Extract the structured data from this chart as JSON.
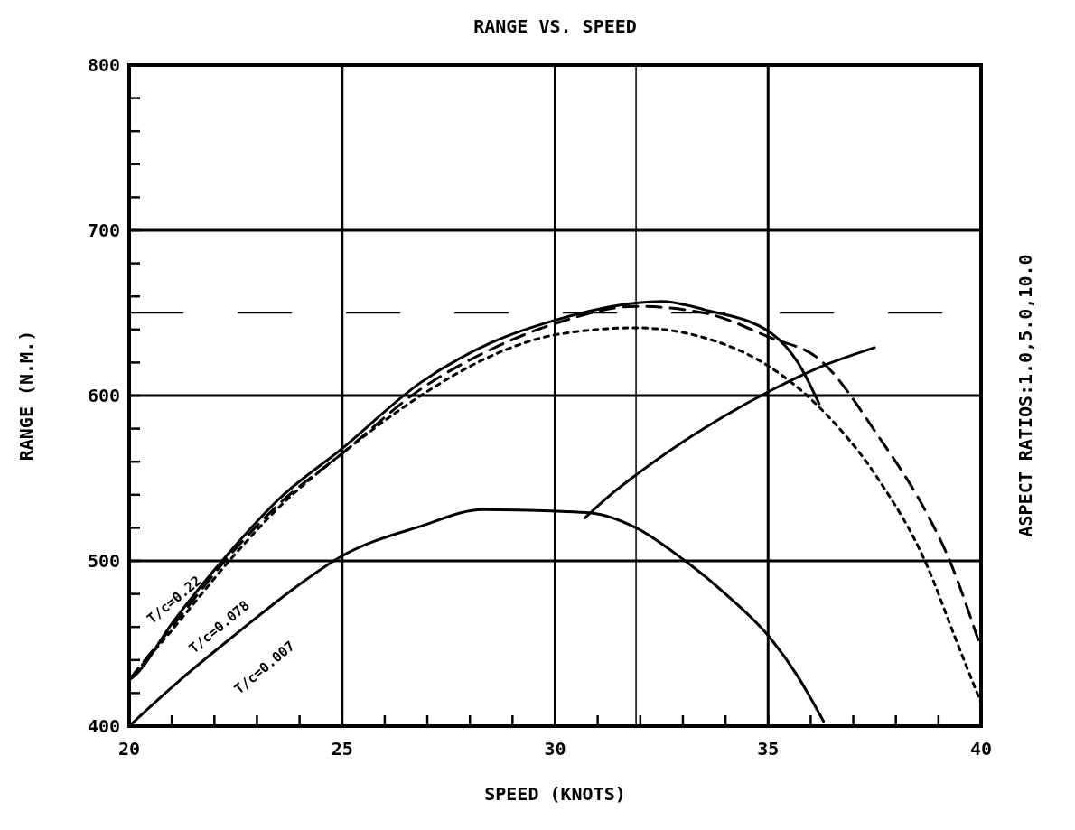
{
  "chart_data": {
    "type": "line",
    "title": "RANGE VS. SPEED",
    "xlabel": "SPEED (KNOTS)",
    "ylabel": "RANGE (N.M.)",
    "y2label": "ASPECT RATIOS:1.0,5.0,10.0",
    "xlim": [
      20,
      40
    ],
    "ylim": [
      400,
      800
    ],
    "xticks": [
      20,
      {
        "value": 21,
        "label": null
      },
      {
        "value": 22,
        "label": null
      },
      {
        "value": 23,
        "label": null
      },
      {
        "value": 24,
        "label": null
      },
      25,
      {
        "value": 26,
        "label": null
      },
      {
        "value": 27,
        "label": null
      },
      {
        "value": 28,
        "label": null
      },
      {
        "value": 29,
        "label": null
      },
      30,
      {
        "value": 31,
        "label": null
      },
      {
        "value": 32,
        "label": null
      },
      {
        "value": 33,
        "label": null
      },
      {
        "value": 34,
        "label": null
      },
      35,
      {
        "value": 36,
        "label": null
      },
      {
        "value": 37,
        "label": null
      },
      {
        "value": 38,
        "label": null
      },
      {
        "value": 39,
        "label": null
      },
      40
    ],
    "yticks": [
      400,
      {
        "value": 420,
        "label": null
      },
      {
        "value": 440,
        "label": null
      },
      {
        "value": 460,
        "label": null
      },
      {
        "value": 480,
        "label": null
      },
      500,
      {
        "value": 520,
        "label": null
      },
      {
        "value": 540,
        "label": null
      },
      {
        "value": 560,
        "label": null
      },
      {
        "value": 580,
        "label": null
      },
      600,
      {
        "value": 620,
        "label": null
      },
      {
        "value": 640,
        "label": null
      },
      {
        "value": 660,
        "label": null
      },
      {
        "value": 680,
        "label": null
      },
      700,
      {
        "value": 720,
        "label": null
      },
      {
        "value": 740,
        "label": null
      },
      {
        "value": 760,
        "label": null
      },
      {
        "value": 780,
        "label": null
      },
      800
    ],
    "grid": true,
    "marker": "none",
    "series": [
      {
        "color": "#000000",
        "line_style": "solid",
        "x": [
          20,
          20.15,
          21,
          22.35,
          23.5,
          25,
          26.85,
          28.5,
          30.05,
          31.9,
          32.5,
          33.5,
          35.06,
          35.7,
          36.2
        ],
        "values": [
          428,
          431,
          462,
          505,
          537,
          568,
          608,
          632,
          646,
          656,
          657,
          652,
          638,
          620,
          595
        ]
      },
      {
        "color": "#000000",
        "line_style": "dashed",
        "x": [
          20,
          21,
          22.35,
          23.5,
          25,
          26.85,
          28.5,
          30.05,
          31.9,
          33.5,
          35.06,
          36.2,
          37.6,
          38.7,
          39.2,
          40
        ],
        "values": [
          428,
          460,
          503,
          534,
          565,
          604,
          628,
          644,
          654,
          650,
          635,
          622,
          575,
          530,
          504,
          447
        ]
      },
      {
        "color": "#000000",
        "line_style": "dotted",
        "x": [
          20,
          21,
          22.35,
          23.5,
          25,
          26.85,
          28.5,
          30.05,
          31.9,
          33.5,
          35.06,
          36.2,
          37.6,
          38.7,
          39.4,
          40
        ],
        "values": [
          428,
          458,
          500,
          532,
          565,
          600,
          624,
          637,
          641,
          635,
          617,
          593,
          549,
          499,
          453,
          414
        ]
      },
      {
        "color": "#000000",
        "line_style": "solid",
        "x": [
          20,
          21.2,
          22.57,
          23.8,
          25,
          26.85,
          28.3,
          30.05,
          30.85,
          31.9,
          33,
          34,
          35.06,
          35.7,
          36.3
        ],
        "values": [
          400,
          428,
          457,
          482,
          503,
          521,
          531,
          530,
          529,
          520,
          501,
          480,
          453,
          430,
          403
        ]
      },
      {
        "color": "#000000",
        "line_style": "solid",
        "x": [
          30.7,
          31.3,
          31.9,
          33,
          34,
          35.06,
          36.2,
          37.5
        ],
        "values": [
          526,
          540,
          552,
          572,
          588,
          603,
          617,
          629
        ]
      }
    ],
    "ref_lines": [
      {
        "axis": "y",
        "value": 650,
        "line_style": "dashed"
      },
      {
        "axis": "x",
        "value": 31.9,
        "line_style": "solid"
      }
    ],
    "annotations": [
      "T/c=0.22",
      "T/c=0.078",
      "T/c=0.007"
    ]
  }
}
